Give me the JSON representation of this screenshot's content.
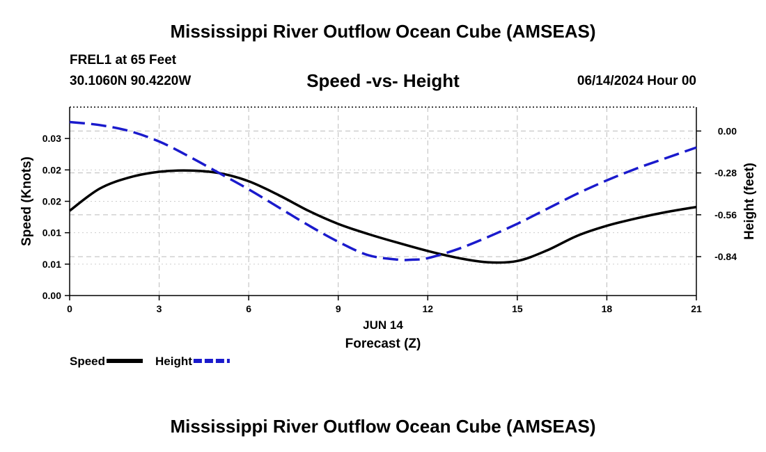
{
  "header": {
    "title": "Mississippi River Outflow Ocean Cube (AMSEAS)",
    "station": "FREL1 at 65 Feet",
    "coords": "30.1060N  90.4220W",
    "chart_title": "Speed -vs- Height",
    "datetime": "06/14/2024 Hour 00"
  },
  "footer": {
    "title": "Mississippi River Outflow Ocean Cube (AMSEAS)"
  },
  "chart_data": {
    "type": "line",
    "title": "Speed -vs- Height",
    "xlabel": "Forecast (Z)",
    "xdate_label": "JUN 14",
    "xlim": [
      0,
      21
    ],
    "x_ticks": [
      "0",
      "3",
      "6",
      "9",
      "12",
      "15",
      "18",
      "21"
    ],
    "ylabel_left": "Speed (Knots)",
    "ylim_left": [
      0,
      0.03
    ],
    "y_ticks_left": [
      {
        "value": 0.0,
        "label": "0.00"
      },
      {
        "value": 0.005,
        "label": "0.01"
      },
      {
        "value": 0.01,
        "label": "0.01"
      },
      {
        "value": 0.015,
        "label": "0.02"
      },
      {
        "value": 0.02,
        "label": "0.02"
      },
      {
        "value": 0.025,
        "label": "0.03"
      }
    ],
    "ylabel_right": "Height (feet)",
    "ylim_right": [
      -1.1,
      0.16
    ],
    "y_ticks_right": [
      "0.00",
      "-0.28",
      "-0.56",
      "-0.84"
    ],
    "grid": true,
    "legend_position": "bottom-left",
    "series": [
      {
        "name": "Speed",
        "axis": "left",
        "color": "#000000",
        "style": "solid",
        "x": [
          0,
          1,
          2,
          3,
          4,
          5,
          6,
          7,
          8,
          9,
          10,
          11,
          12,
          13,
          14,
          15,
          16,
          17,
          18,
          19,
          20,
          21
        ],
        "values": [
          0.0135,
          0.017,
          0.0188,
          0.0197,
          0.0199,
          0.0195,
          0.0182,
          0.016,
          0.0135,
          0.0114,
          0.0098,
          0.0084,
          0.0071,
          0.006,
          0.0053,
          0.0055,
          0.0072,
          0.0095,
          0.0111,
          0.0123,
          0.0133,
          0.0141
        ]
      },
      {
        "name": "Height",
        "axis": "right",
        "color": "#1a1acc",
        "style": "dashed",
        "x": [
          0,
          1,
          2,
          3,
          4,
          5,
          6,
          7,
          8,
          9,
          10,
          11,
          11.5,
          12,
          13,
          14,
          15,
          16,
          17,
          18,
          19,
          20,
          21
        ],
        "values": [
          0.06,
          0.04,
          0.0,
          -0.07,
          -0.17,
          -0.28,
          -0.39,
          -0.51,
          -0.63,
          -0.74,
          -0.83,
          -0.86,
          -0.86,
          -0.85,
          -0.79,
          -0.71,
          -0.62,
          -0.52,
          -0.42,
          -0.33,
          -0.25,
          -0.18,
          -0.11
        ]
      }
    ]
  }
}
